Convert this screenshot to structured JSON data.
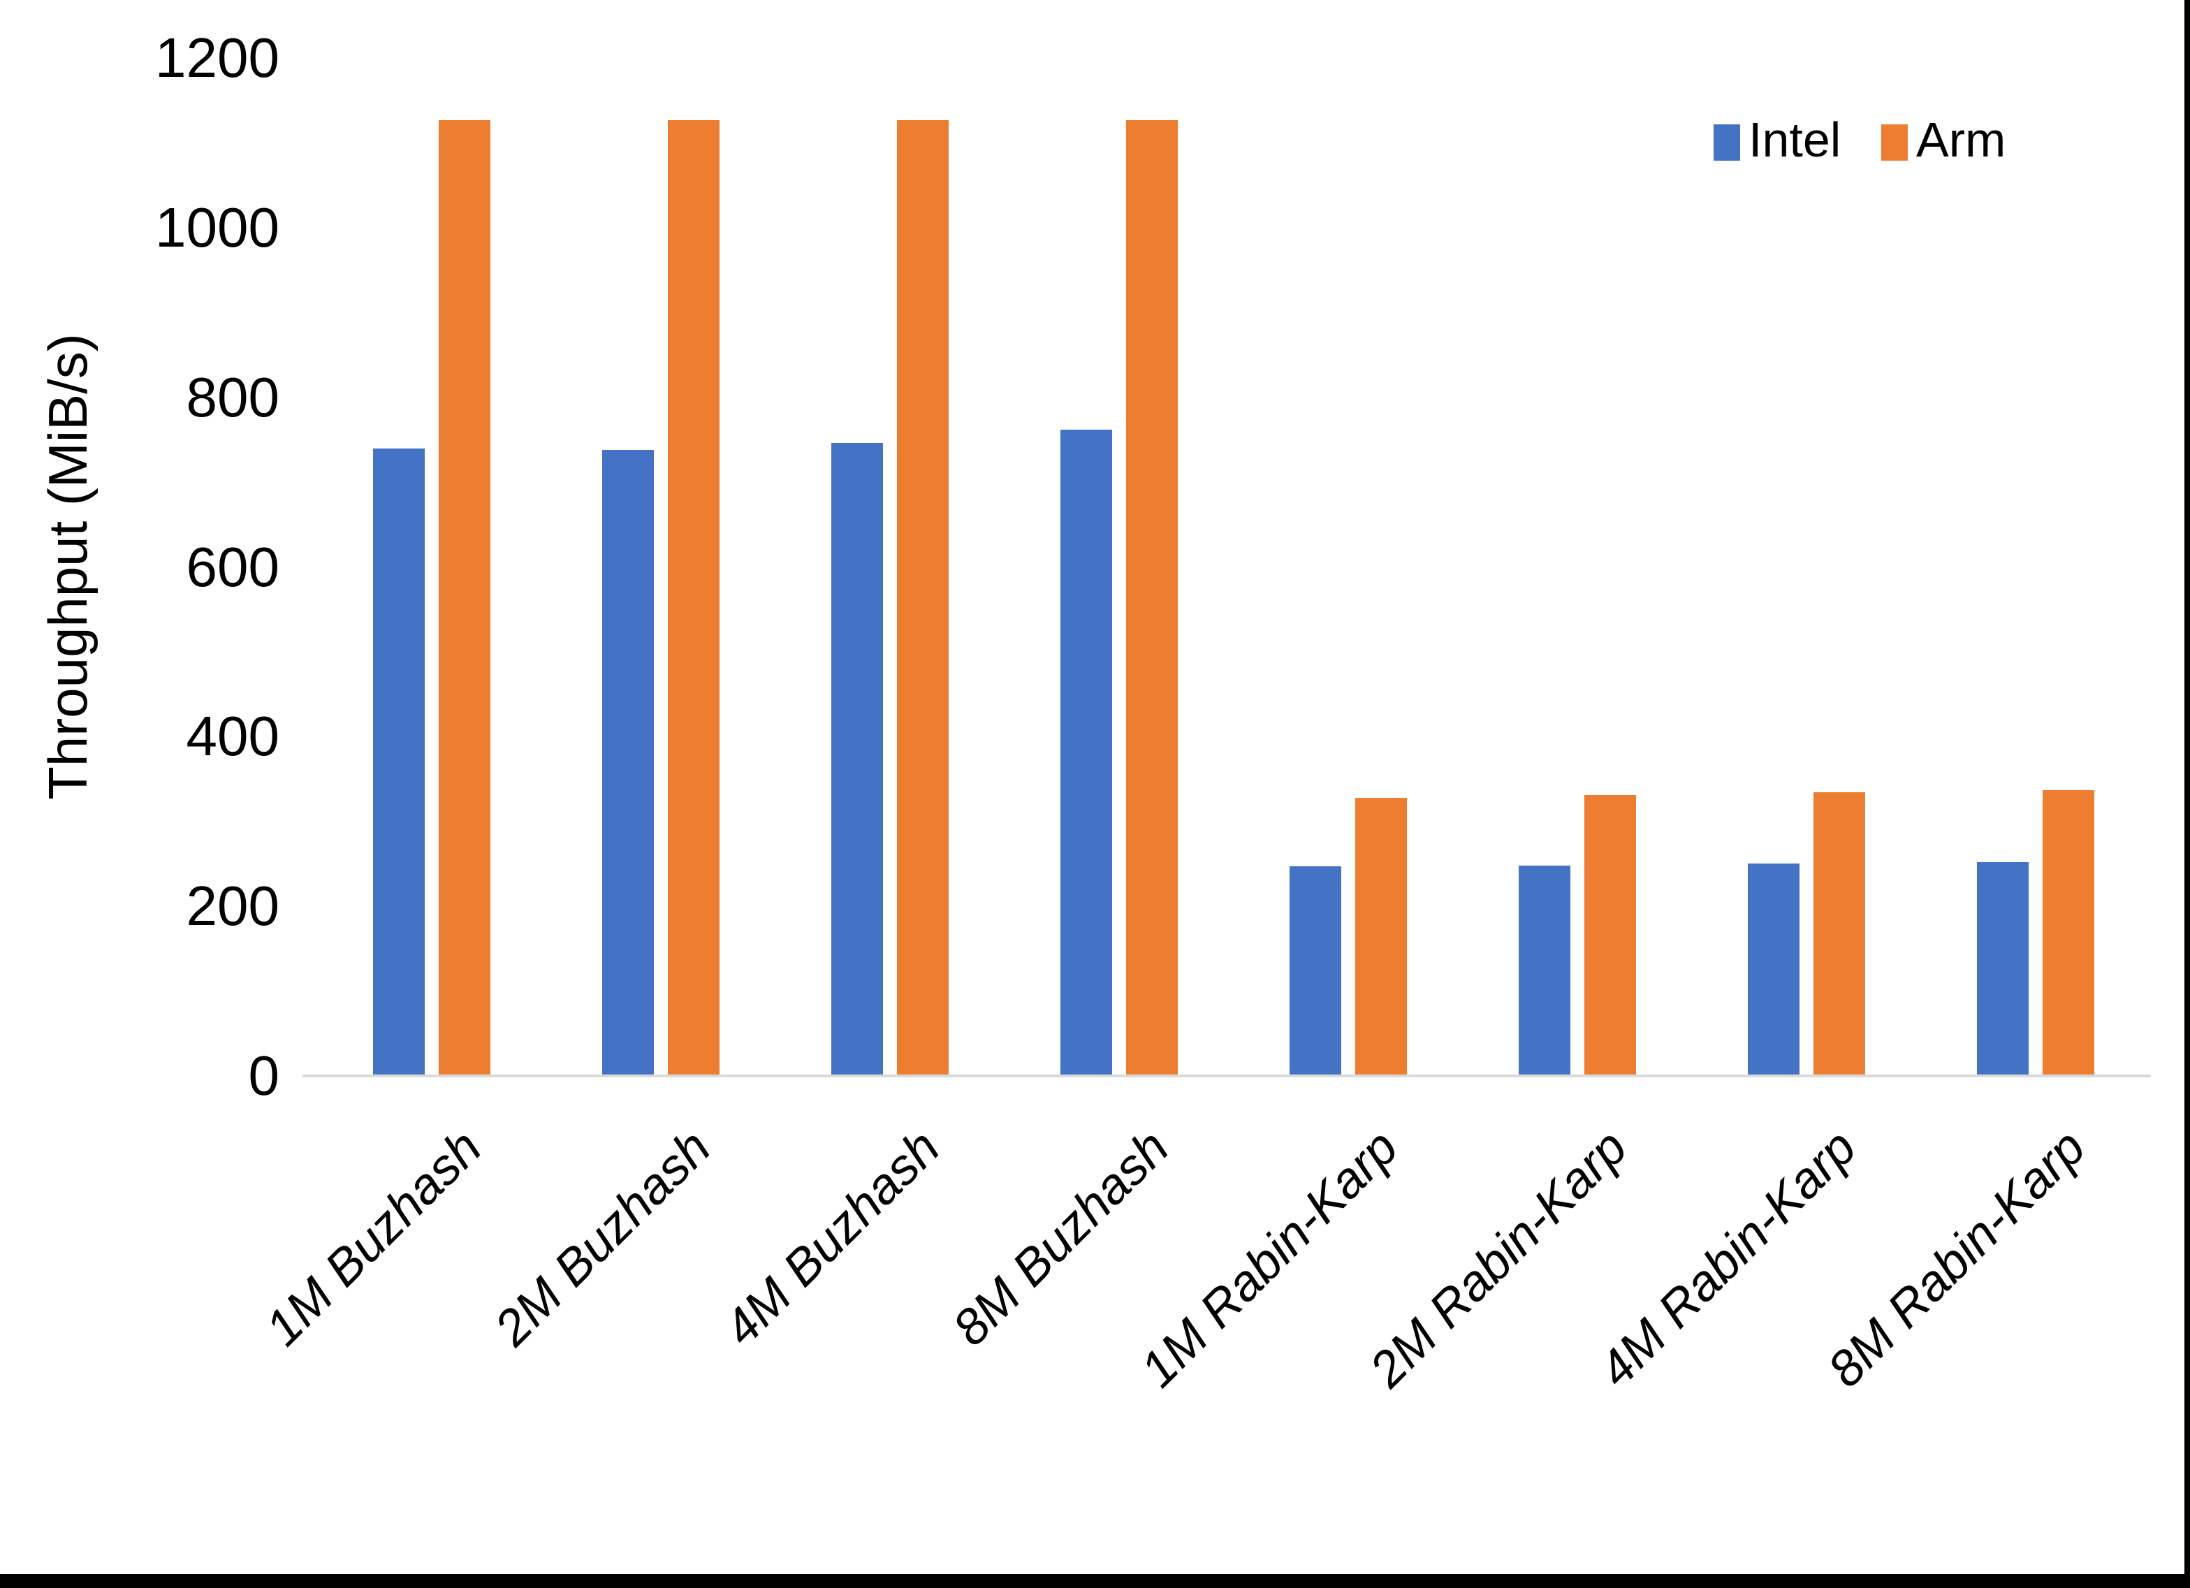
{
  "chart_data": {
    "type": "bar",
    "title": "",
    "xlabel": "",
    "ylabel": "Throughput (MiB/s)",
    "categories": [
      "1M Buzhash",
      "2M Buzhash",
      "4M Buzhash",
      "8M Buzhash",
      "1M Rabin-Karp",
      "2M Rabin-Karp",
      "4M Rabin-Karp",
      "8M Rabin-Karp"
    ],
    "series": [
      {
        "name": "Intel",
        "color": "#4472C4",
        "values": [
          740,
          738,
          746,
          762,
          247,
          248,
          250,
          252
        ]
      },
      {
        "name": "Arm",
        "color": "#ED7D31",
        "values": [
          1127,
          1127,
          1127,
          1127,
          328,
          331,
          334,
          337
        ]
      }
    ],
    "ylim": [
      0,
      1200
    ],
    "y_ticks": [
      0,
      200,
      400,
      600,
      800,
      1000,
      1200
    ],
    "grid": false,
    "legend_position": "top-right",
    "axis_line_color": "#D9D9D9",
    "border_color": "#000000"
  }
}
